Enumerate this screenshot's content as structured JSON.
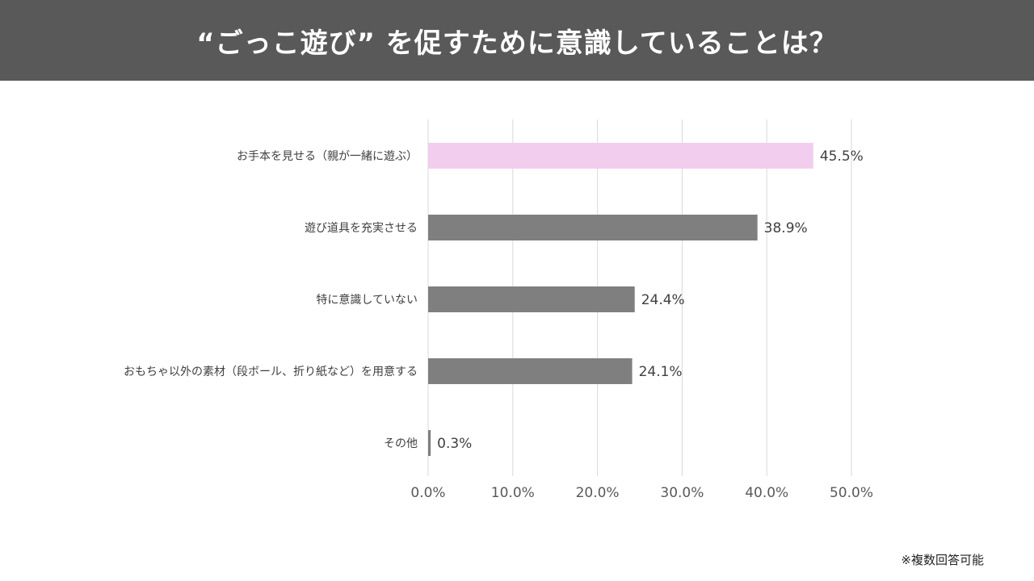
{
  "header": {
    "title": "“ごっこ遊び” を促すために意識していることは？",
    "background_color": "#595959"
  },
  "footnote": "※複数回答可能",
  "chart_data": {
    "type": "bar",
    "orientation": "horizontal",
    "categories": [
      "お手本を見せる（親が一緒に遊ぶ）",
      "遊び道具を充実させる",
      "特に意識していない",
      "おもちゃ以外の素材（段ボール、折り紙など）を用意する",
      "その他"
    ],
    "values": [
      45.5,
      38.9,
      24.4,
      24.1,
      0.3
    ],
    "value_labels": [
      "45.5%",
      "38.9%",
      "24.4%",
      "24.1%",
      "0.3%"
    ],
    "xlim": [
      0,
      50
    ],
    "x_ticks": [
      "0.0%",
      "10.0%",
      "20.0%",
      "30.0%",
      "40.0%",
      "50.0%"
    ],
    "grid": true,
    "colors": {
      "highlight": "#f2cdee",
      "default": "#7f7f7f",
      "grid": "#d9d9d9"
    },
    "highlight_index": 0
  }
}
